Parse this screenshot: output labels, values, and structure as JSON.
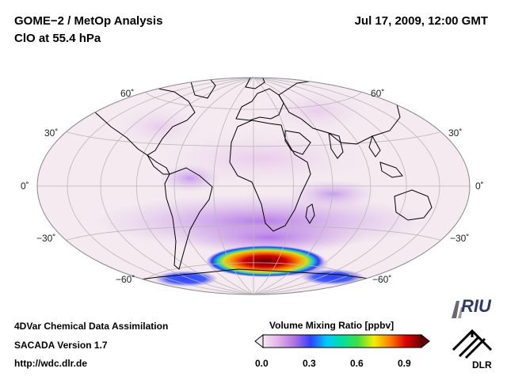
{
  "header": {
    "title_line1": "GOME−2 / MetOp Analysis",
    "title_line2": "ClO at 55.4 hPa",
    "datetime": "Jul 17, 2009, 12:00 GMT"
  },
  "map": {
    "projection": "Hammer-Aitoff",
    "lat_labels": {
      "n60": "60˚",
      "n30": "30˚",
      "eq": "0˚",
      "s30": "−30˚",
      "s60": "−60˚"
    },
    "colors": {
      "background": "#f4eaf0",
      "outline": "#8a8a8a",
      "grid": "#b8b8b8",
      "coast": "#000000"
    }
  },
  "footer": {
    "line1": "4DVar Chemical Data Assimilation",
    "line2": "SACADA Version 1.7",
    "line3": "http://wdc.dlr.de"
  },
  "colorbar": {
    "title": "Volume Mixing Ratio [ppbv]",
    "ticks": [
      "0.0",
      "0.3",
      "0.6",
      "0.9"
    ],
    "range": [
      0.0,
      1.0
    ],
    "colors": [
      "#f4eaf0",
      "#e0b0e8",
      "#b070e0",
      "#3040ff",
      "#00c8ff",
      "#00e0a0",
      "#40e040",
      "#f0f000",
      "#ff8000",
      "#e00000",
      "#700000"
    ]
  },
  "logos": {
    "riu": "RIU",
    "dlr": "DLR"
  }
}
